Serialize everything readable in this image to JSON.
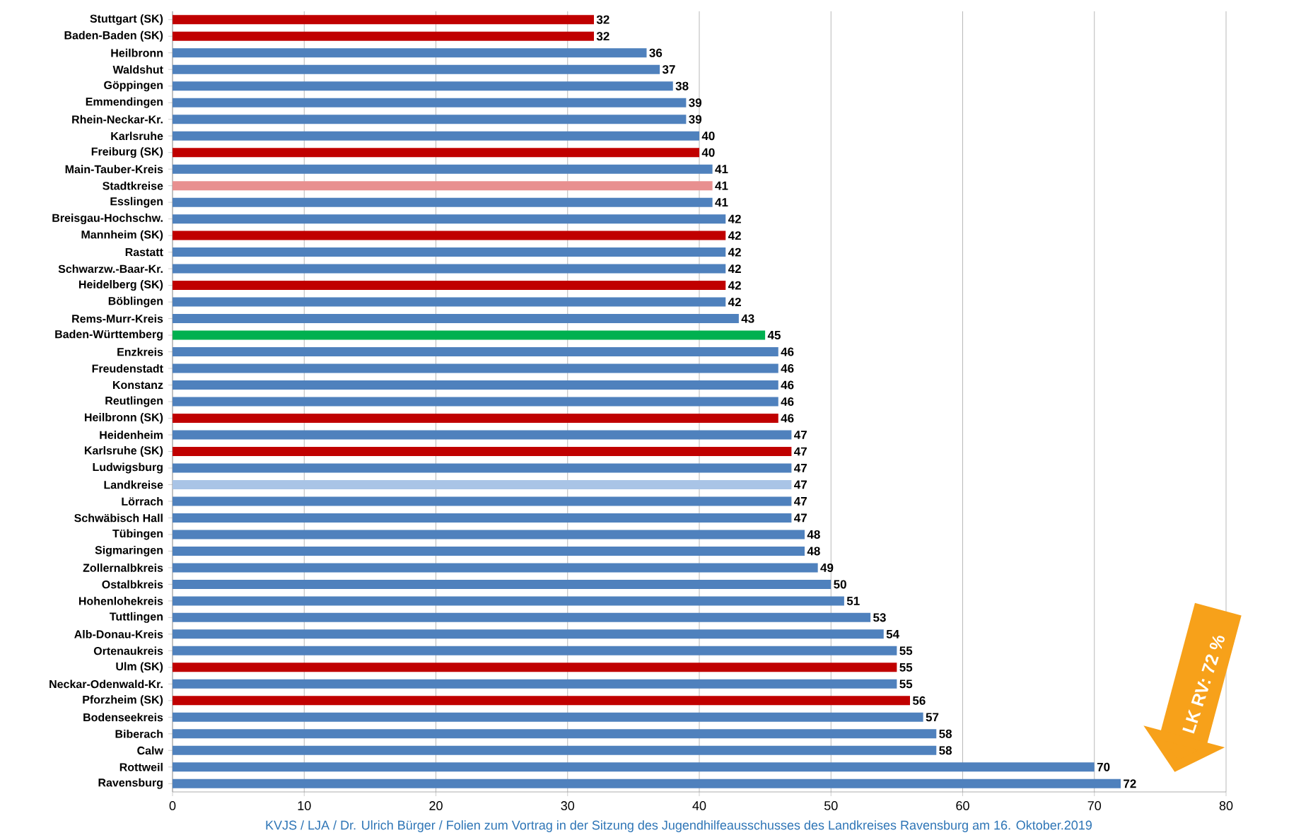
{
  "chart_data": {
    "type": "bar",
    "orientation": "horizontal",
    "categories": [
      "Stuttgart (SK)",
      "Baden-Baden (SK)",
      "Heilbronn",
      "Waldshut",
      "Göppingen",
      "Emmendingen",
      "Rhein-Neckar-Kr.",
      "Karlsruhe",
      "Freiburg (SK)",
      "Main-Tauber-Kreis",
      "Stadtkreise",
      "Esslingen",
      "Breisgau-Hochschw.",
      "Mannheim (SK)",
      "Rastatt",
      "Schwarzw.-Baar-Kr.",
      "Heidelberg (SK)",
      "Böblingen",
      "Rems-Murr-Kreis",
      "Baden-Württemberg",
      "Enzkreis",
      "Freudenstadt",
      "Konstanz",
      "Reutlingen",
      "Heilbronn (SK)",
      "Heidenheim",
      "Karlsruhe (SK)",
      "Ludwigsburg",
      "Landkreise",
      "Lörrach",
      "Schwäbisch Hall",
      "Tübingen",
      "Sigmaringen",
      "Zollernalbkreis",
      "Ostalbkreis",
      "Hohenlohekreis",
      "Tuttlingen",
      "Alb-Donau-Kreis",
      "Ortenaukreis",
      "Ulm (SK)",
      "Neckar-Odenwald-Kr.",
      "Pforzheim (SK)",
      "Bodenseekreis",
      "Biberach",
      "Calw",
      "Rottweil",
      "Ravensburg"
    ],
    "values": [
      32,
      32,
      36,
      37,
      38,
      39,
      39,
      40,
      40,
      41,
      41,
      41,
      42,
      42,
      42,
      42,
      42,
      42,
      43,
      45,
      46,
      46,
      46,
      46,
      46,
      47,
      47,
      47,
      47,
      47,
      47,
      48,
      48,
      49,
      50,
      51,
      53,
      54,
      55,
      55,
      55,
      56,
      57,
      58,
      58,
      70,
      72
    ],
    "colors": [
      "#c00000",
      "#c00000",
      "#4f81bd",
      "#4f81bd",
      "#4f81bd",
      "#4f81bd",
      "#4f81bd",
      "#4f81bd",
      "#c00000",
      "#4f81bd",
      "#e89090",
      "#4f81bd",
      "#4f81bd",
      "#c00000",
      "#4f81bd",
      "#4f81bd",
      "#c00000",
      "#4f81bd",
      "#4f81bd",
      "#00b050",
      "#4f81bd",
      "#4f81bd",
      "#4f81bd",
      "#4f81bd",
      "#c00000",
      "#4f81bd",
      "#c00000",
      "#4f81bd",
      "#a9c4e6",
      "#4f81bd",
      "#4f81bd",
      "#4f81bd",
      "#4f81bd",
      "#4f81bd",
      "#4f81bd",
      "#4f81bd",
      "#4f81bd",
      "#4f81bd",
      "#4f81bd",
      "#c00000",
      "#4f81bd",
      "#c00000",
      "#4f81bd",
      "#4f81bd",
      "#4f81bd",
      "#4f81bd",
      "#4f81bd"
    ],
    "xlim": [
      0,
      80
    ],
    "xticks": [
      0,
      10,
      20,
      30,
      40,
      50,
      60,
      70,
      80
    ],
    "grid": "x",
    "data_labels": true,
    "annotations": [
      "LK RV: 72 %",
      "KVJS / LJA / Dr. Ulrich Bürger / Folien zum Vortrag in der Sitzung des Jugendhilfeausschusses des Landkreises Ravensburg am 16. Oktober.2019"
    ]
  }
}
